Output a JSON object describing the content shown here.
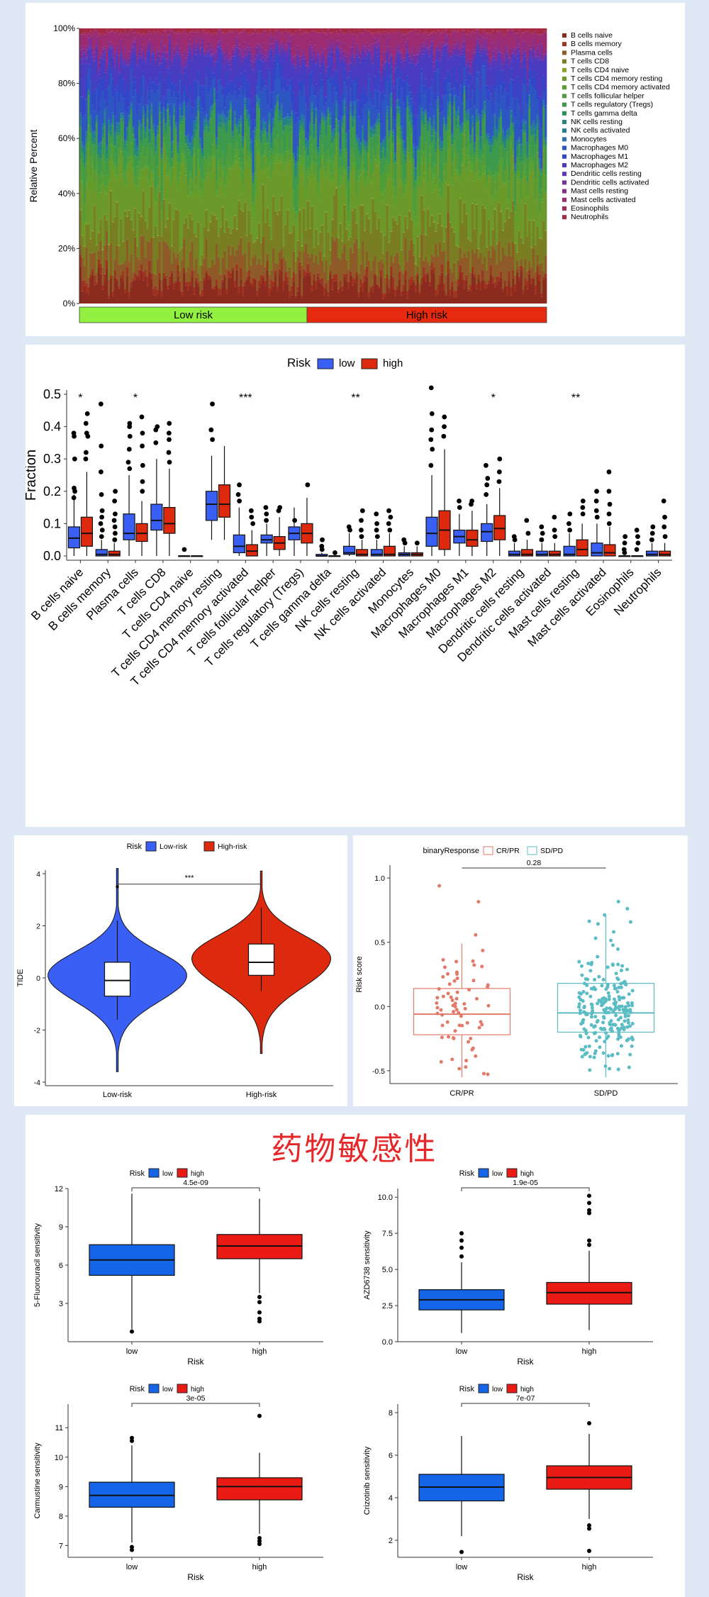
{
  "colors": {
    "low": "#3a5ff5",
    "high": "#dd2a0e",
    "crpr": "#e07b6a",
    "sdpd": "#5bbcc4",
    "drug_low": "#1565e8",
    "drug_high": "#ea1a14",
    "band_low": "#92f040",
    "band_high": "#e52a10",
    "title_red": "#e5272a"
  },
  "page": {
    "title": "药物敏感性"
  },
  "chart_data": [
    {
      "id": "stacked",
      "type": "bar",
      "ylabel": "Relative Percent",
      "ylim": [
        0,
        100
      ],
      "yticks": [
        "0%",
        "20%",
        "40%",
        "60%",
        "80%",
        "100%"
      ],
      "groups": [
        {
          "label": "Low risk",
          "samples": 112
        },
        {
          "label": "High risk",
          "samples": 118
        }
      ],
      "legend": [
        {
          "name": "B cells naive",
          "color": "#8b2a1e"
        },
        {
          "name": "B cells memory",
          "color": "#9e3320"
        },
        {
          "name": "Plasma cells",
          "color": "#8e5a28"
        },
        {
          "name": "T cells CD8",
          "color": "#7a7e22"
        },
        {
          "name": "T cells CD4 naive",
          "color": "#8ea026"
        },
        {
          "name": "T cells CD4 memory resting",
          "color": "#6c9a2a"
        },
        {
          "name": "T cells CD4 memory activated",
          "color": "#5aa030"
        },
        {
          "name": "T cells follicular helper",
          "color": "#4f9c3b"
        },
        {
          "name": "T cells regulatory (Tregs)",
          "color": "#3d9a4c"
        },
        {
          "name": "T cells gamma delta",
          "color": "#2e8f5e"
        },
        {
          "name": "NK cells resting",
          "color": "#27867a"
        },
        {
          "name": "NK cells activated",
          "color": "#247c94"
        },
        {
          "name": "Monocytes",
          "color": "#2b6fb0"
        },
        {
          "name": "Macrophages M0",
          "color": "#2d56c2"
        },
        {
          "name": "Macrophages M1",
          "color": "#3446c8"
        },
        {
          "name": "Macrophages M2",
          "color": "#4a3cc0"
        },
        {
          "name": "Dendritic cells resting",
          "color": "#5e35b2"
        },
        {
          "name": "Dendritic cells activated",
          "color": "#7430a0"
        },
        {
          "name": "Mast cells resting",
          "color": "#8a2e8c"
        },
        {
          "name": "Mast cells activated",
          "color": "#9c2c72"
        },
        {
          "name": "Eosinophils",
          "color": "#a42c5a"
        },
        {
          "name": "Neutrophils",
          "color": "#a42a44"
        }
      ],
      "mean_fractions": [
        6.5,
        2.0,
        7.5,
        11.5,
        0.2,
        16.5,
        2.0,
        4.5,
        7.5,
        0.6,
        1.5,
        1.5,
        0.7,
        8.5,
        5.0,
        8.0,
        1.0,
        1.5,
        2.0,
        4.5,
        0.5,
        1.0
      ]
    },
    {
      "id": "cells_box",
      "type": "box",
      "ylabel": "Fraction",
      "ylim": [
        0,
        0.5
      ],
      "yticks": [
        "0.0",
        "0.1",
        "0.2",
        "0.3",
        "0.4",
        "0.5"
      ],
      "legend_title": "Risk",
      "legend": [
        "low",
        "high"
      ],
      "categories": [
        "B cells naive",
        "B cells memory",
        "Plasma cells",
        "T cells CD8",
        "T cells CD4 naive",
        "T cells CD4 memory resting",
        "T cells CD4 memory activated",
        "T cells follicular helper",
        "T cells regulatory (Tregs)",
        "T cells gamma delta",
        "NK cells resting",
        "NK cells activated",
        "Monocytes",
        "Macrophages M0",
        "Macrophages M1",
        "Macrophages M2",
        "Dendritic cells resting",
        "Dendritic cells activated",
        "Mast cells resting",
        "Mast cells activated",
        "Eosinophils",
        "Neutrophils"
      ],
      "significance": [
        "*",
        "",
        "*",
        "",
        "",
        "",
        "***",
        "",
        "",
        "",
        "**",
        "",
        "",
        "",
        "",
        "*",
        "",
        "",
        "**",
        "",
        "",
        ""
      ],
      "low": [
        [
          0,
          0.025,
          0.055,
          0.09,
          0.19
        ],
        [
          0,
          0,
          0.005,
          0.02,
          0.05
        ],
        [
          0,
          0.05,
          0.07,
          0.13,
          0.25
        ],
        [
          0,
          0.08,
          0.11,
          0.16,
          0.3
        ],
        [
          0,
          0,
          0,
          0,
          0
        ],
        [
          0.05,
          0.11,
          0.16,
          0.2,
          0.31
        ],
        [
          0,
          0.01,
          0.03,
          0.065,
          0.15
        ],
        [
          0,
          0.04,
          0.05,
          0.065,
          0.1
        ],
        [
          0,
          0.05,
          0.07,
          0.09,
          0.15
        ],
        [
          0,
          0,
          0,
          0.005,
          0.01
        ],
        [
          0,
          0.005,
          0.01,
          0.03,
          0.07
        ],
        [
          0,
          0,
          0.005,
          0.02,
          0.05
        ],
        [
          0,
          0,
          0.005,
          0.01,
          0.03
        ],
        [
          0,
          0.03,
          0.07,
          0.12,
          0.25
        ],
        [
          0,
          0.04,
          0.06,
          0.08,
          0.13
        ],
        [
          0,
          0.045,
          0.075,
          0.1,
          0.16
        ],
        [
          0,
          0,
          0.005,
          0.015,
          0.04
        ],
        [
          0,
          0,
          0.005,
          0.015,
          0.04
        ],
        [
          0,
          0,
          0.005,
          0.03,
          0.07
        ],
        [
          0,
          0,
          0.01,
          0.04,
          0.1
        ],
        [
          0,
          0,
          0,
          0,
          0
        ],
        [
          0,
          0,
          0.005,
          0.015,
          0.04
        ]
      ],
      "high": [
        [
          0,
          0.03,
          0.07,
          0.12,
          0.26
        ],
        [
          0,
          0,
          0.005,
          0.015,
          0.04
        ],
        [
          0,
          0.045,
          0.07,
          0.1,
          0.17
        ],
        [
          0,
          0.07,
          0.1,
          0.15,
          0.27
        ],
        [
          0,
          0,
          0,
          0,
          0
        ],
        [
          0.05,
          0.12,
          0.16,
          0.22,
          0.34
        ],
        [
          0,
          0,
          0.015,
          0.035,
          0.08
        ],
        [
          0,
          0.02,
          0.04,
          0.06,
          0.12
        ],
        [
          0,
          0.04,
          0.07,
          0.1,
          0.18
        ],
        [
          0,
          0,
          0,
          0,
          0
        ],
        [
          0,
          0,
          0.005,
          0.02,
          0.05
        ],
        [
          0,
          0,
          0.005,
          0.03,
          0.07
        ],
        [
          0,
          0,
          0.005,
          0.01,
          0.03
        ],
        [
          0,
          0.02,
          0.08,
          0.14,
          0.33
        ],
        [
          0,
          0.03,
          0.05,
          0.08,
          0.14
        ],
        [
          0,
          0.05,
          0.085,
          0.125,
          0.21
        ],
        [
          0,
          0,
          0.005,
          0.02,
          0.05
        ],
        [
          0,
          0,
          0.005,
          0.015,
          0.04
        ],
        [
          0,
          0,
          0.02,
          0.05,
          0.1
        ],
        [
          0,
          0,
          0.01,
          0.035,
          0.09
        ],
        [
          0,
          0,
          0,
          0,
          0
        ],
        [
          0,
          0,
          0.005,
          0.015,
          0.04
        ]
      ],
      "outliers_low": [
        [
          0.18,
          0.2,
          0.21,
          0.3,
          0.37,
          0.38
        ],
        [
          0.06,
          0.08,
          0.1,
          0.12,
          0.14,
          0.19,
          0.26,
          0.34,
          0.47
        ],
        [
          0.27,
          0.29,
          0.33,
          0.37,
          0.4,
          0.41
        ],
        [
          0.35,
          0.39,
          0.4
        ],
        [
          0.02
        ],
        [
          0.36,
          0.39,
          0.47
        ],
        [
          0.17,
          0.19,
          0.22
        ],
        [
          0.11,
          0.13,
          0.15
        ],
        [
          0.11
        ],
        [
          0.02,
          0.03,
          0.05
        ],
        [
          0.08,
          0.09
        ],
        [
          0.06,
          0.08,
          0.1,
          0.13
        ],
        [
          0.04,
          0.05
        ],
        [
          0.28,
          0.33,
          0.36,
          0.39,
          0.44,
          0.52
        ],
        [
          0.15,
          0.17
        ],
        [
          0.19,
          0.22,
          0.24,
          0.28
        ],
        [
          0.05,
          0.06
        ],
        [
          0.05,
          0.07,
          0.09
        ],
        [
          0.08,
          0.1,
          0.13
        ],
        [
          0.12,
          0.14,
          0.17,
          0.2
        ],
        [
          0.01,
          0.02,
          0.04,
          0.06
        ],
        [
          0.05,
          0.07,
          0.09
        ]
      ],
      "outliers_high": [
        [
          0.3,
          0.32,
          0.37,
          0.38,
          0.41,
          0.44
        ],
        [
          0.05,
          0.07,
          0.09,
          0.11,
          0.13,
          0.17,
          0.2
        ],
        [
          0.2,
          0.23,
          0.28,
          0.34,
          0.38,
          0.43
        ],
        [
          0.29,
          0.32,
          0.36,
          0.38,
          0.41
        ],
        [],
        [],
        [
          0.1,
          0.12,
          0.14
        ],
        [
          0.14,
          0.15
        ],
        [
          0.22
        ],
        [
          0.01
        ],
        [
          0.06,
          0.08,
          0.11,
          0.14
        ],
        [
          0.08,
          0.1,
          0.12,
          0.14
        ],
        [
          0.04
        ],
        [
          0.37,
          0.4,
          0.43
        ],
        [
          0.16,
          0.17
        ],
        [
          0.23,
          0.26,
          0.3
        ],
        [
          0.07,
          0.11
        ],
        [
          0.06,
          0.08,
          0.12
        ],
        [
          0.13,
          0.15,
          0.17
        ],
        [
          0.1,
          0.13,
          0.16,
          0.2,
          0.26
        ],
        [
          0.02,
          0.04,
          0.06,
          0.08
        ],
        [
          0.06,
          0.09,
          0.12,
          0.17
        ]
      ]
    },
    {
      "id": "tide",
      "type": "violin",
      "legend_title": "Risk",
      "legend": [
        "Low-risk",
        "High-risk"
      ],
      "categories": [
        "Low-risk",
        "High-risk"
      ],
      "ylabel": "TIDE",
      "ylim": [
        -4,
        4
      ],
      "yticks": [
        "-4",
        "-2",
        "0",
        "2",
        "4"
      ],
      "significance": "***",
      "box": [
        [
          -1.6,
          -0.7,
          -0.1,
          0.6,
          2.2
        ],
        [
          -0.5,
          0.1,
          0.6,
          1.3,
          2.7
        ]
      ]
    },
    {
      "id": "response",
      "type": "box",
      "legend_title": "binaryResponse",
      "legend": [
        "CR/PR",
        "SD/PD"
      ],
      "categories": [
        "CR/PR",
        "SD/PD"
      ],
      "ylabel": "Risk score",
      "ylim": [
        -0.6,
        1.1
      ],
      "yticks": [
        "-0.5",
        "0.0",
        "0.5",
        "1.0"
      ],
      "pvalue": "0.28",
      "box": [
        [
          -0.55,
          -0.22,
          -0.06,
          0.14,
          0.49
        ],
        [
          -0.55,
          -0.2,
          -0.05,
          0.18,
          0.72
        ]
      ]
    },
    {
      "id": "drug_fu",
      "type": "box",
      "legend_title": "Risk",
      "legend": [
        "low",
        "high"
      ],
      "categories": [
        "low",
        "high"
      ],
      "xlabel": "Risk",
      "ylabel": "5-Fluorouracil sensitivity",
      "ylim": [
        0,
        12
      ],
      "yticks": [
        "3",
        "6",
        "9",
        "12"
      ],
      "pvalue": "4.5e-09",
      "box": [
        [
          1.0,
          5.2,
          6.4,
          7.6,
          11.6
        ],
        [
          3.8,
          6.5,
          7.5,
          8.4,
          11.2
        ]
      ],
      "outliers": [
        [
          0.8
        ],
        [
          1.6,
          1.8,
          2.3,
          3.1,
          3.5
        ]
      ]
    },
    {
      "id": "drug_azd",
      "type": "box",
      "legend_title": "Risk",
      "legend": [
        "low",
        "high"
      ],
      "categories": [
        "low",
        "high"
      ],
      "xlabel": "Risk",
      "ylabel": "AZD6738 sensitivity",
      "ylim": [
        0,
        10.6
      ],
      "yticks": [
        "0.0",
        "2.5",
        "5.0",
        "7.5",
        "10.0"
      ],
      "pvalue": "1.9e-05",
      "box": [
        [
          0.6,
          2.2,
          2.9,
          3.6,
          5.5
        ],
        [
          0.8,
          2.6,
          3.4,
          4.1,
          6.3
        ]
      ],
      "outliers": [
        [
          5.9,
          6.5,
          7.0,
          7.5
        ],
        [
          6.7,
          7.0,
          8.9,
          9.1,
          9.6,
          10.1
        ]
      ]
    },
    {
      "id": "drug_carm",
      "type": "box",
      "legend_title": "Risk",
      "legend": [
        "low",
        "high"
      ],
      "categories": [
        "low",
        "high"
      ],
      "xlabel": "Risk",
      "ylabel": "Carmustine sensitivity",
      "ylim": [
        6.6,
        11.8
      ],
      "yticks": [
        "7",
        "8",
        "9",
        "10",
        "11"
      ],
      "pvalue": "3e-05",
      "box": [
        [
          7.1,
          8.3,
          8.7,
          9.15,
          10.4
        ],
        [
          7.4,
          8.55,
          9.0,
          9.3,
          10.15
        ]
      ],
      "outliers": [
        [
          6.85,
          6.95,
          10.55,
          10.65
        ],
        [
          7.05,
          7.15,
          7.25,
          11.4
        ]
      ]
    },
    {
      "id": "drug_criz",
      "type": "box",
      "legend_title": "Risk",
      "legend": [
        "low",
        "high"
      ],
      "categories": [
        "low",
        "high"
      ],
      "xlabel": "Risk",
      "ylabel": "Crizotinib sensitivity",
      "ylim": [
        1.2,
        8.4
      ],
      "yticks": [
        "2",
        "4",
        "6",
        "8"
      ],
      "pvalue": "7e-07",
      "box": [
        [
          2.2,
          3.85,
          4.5,
          5.1,
          6.9
        ],
        [
          3.0,
          4.4,
          4.95,
          5.5,
          7.0
        ]
      ],
      "outliers": [
        [
          1.45
        ],
        [
          1.5,
          2.55,
          2.7,
          7.5
        ]
      ]
    }
  ]
}
